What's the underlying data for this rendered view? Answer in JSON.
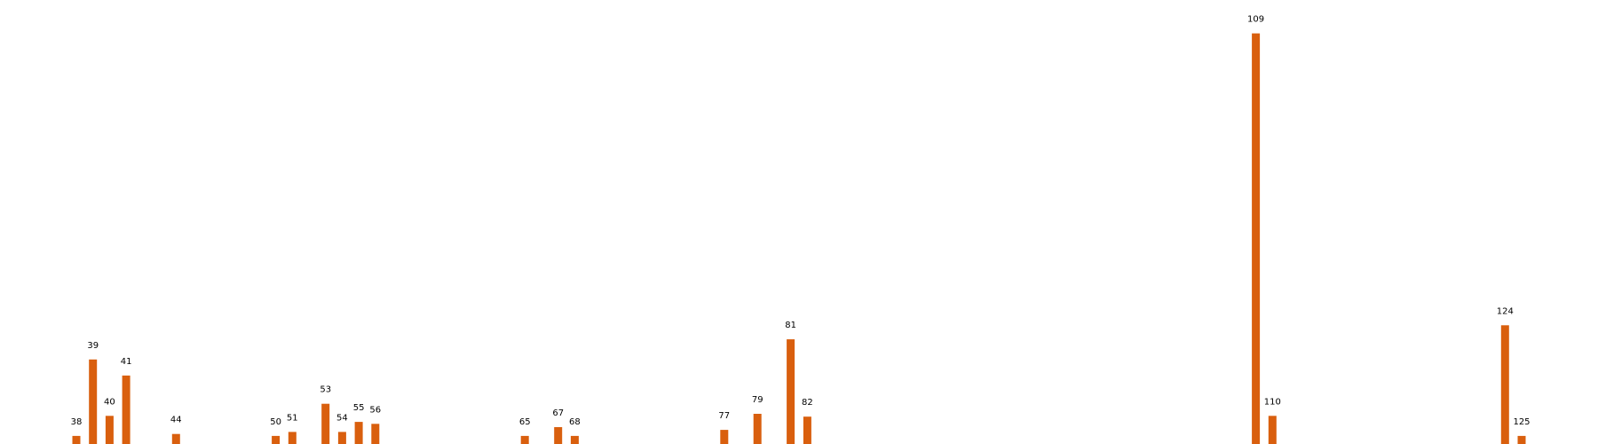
{
  "chart_data": {
    "type": "bar",
    "x": [
      38,
      39,
      40,
      41,
      44,
      50,
      51,
      53,
      54,
      55,
      56,
      65,
      67,
      68,
      77,
      79,
      81,
      82,
      109,
      110,
      124,
      125
    ],
    "values": [
      2,
      21,
      7,
      17,
      2.5,
      2,
      3,
      10,
      3,
      5.5,
      5,
      2,
      4.2,
      2,
      3.5,
      7.5,
      26,
      6.8,
      102,
      7,
      29.5,
      2
    ],
    "xlim": [
      30,
      128
    ],
    "ylim": [
      0,
      105
    ],
    "title": "",
    "xlabel": "",
    "ylabel": "",
    "grid": false,
    "show_data_labels": true,
    "colors": {
      "bar": "#d95f0e"
    }
  }
}
